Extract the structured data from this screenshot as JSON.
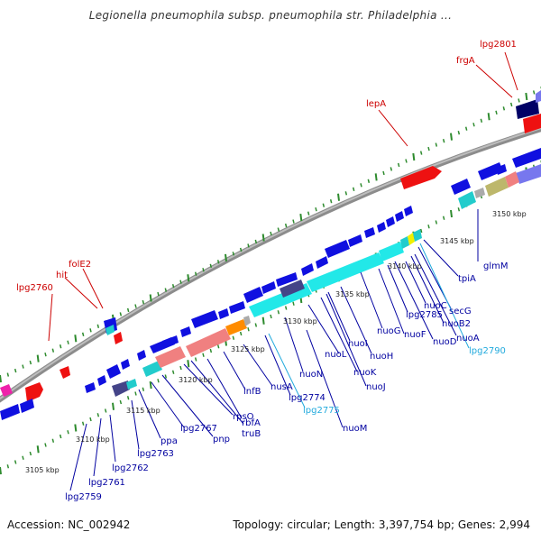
{
  "title": "Legionella pneumophila subsp. pneumophila str. Philadelphia ...",
  "footer": {
    "accession": "Accession: NC_002942",
    "summary": "Topology: circular; Length: 3,397,754 bp; Genes: 2,994"
  },
  "colors": {
    "backbone": "#8c8c8c",
    "tick": "#2e8b2e",
    "gene_blue": "#1010e0",
    "highlight_red": "#ee1111",
    "label_blue": "#0000a0",
    "label_red": "#cc0000",
    "label_cyan": "#22aadd"
  },
  "scale_labels": [
    "3105 kbp",
    "3110 kbp",
    "3115 kbp",
    "3120 kbp",
    "3125 kbp",
    "3130 kbp",
    "3135 kbp",
    "3140 kbp",
    "3145 kbp",
    "3150 kbp"
  ],
  "gene_labels_red": [
    "lpg2801",
    "frgA",
    "lepA",
    "folE2",
    "hit",
    "lpg2760"
  ],
  "gene_labels_blue": [
    "lpg2759",
    "lpg2761",
    "lpg2762",
    "lpg2763",
    "ppa",
    "lpg2767",
    "pnp",
    "rpsO",
    "truB",
    "rbfA",
    "infB",
    "nusA",
    "lpg2774",
    "nuoM",
    "nuoN",
    "nuoL",
    "nuoK",
    "nuoJ",
    "nuoI",
    "nuoH",
    "nuoG",
    "nuoF",
    "lpg2785",
    "nuoD",
    "nuoC",
    "nuoB2",
    "nuoA",
    "secG",
    "tpiA",
    "glmM"
  ],
  "gene_labels_cyan": [
    "lpg2775",
    "lpg2790"
  ]
}
